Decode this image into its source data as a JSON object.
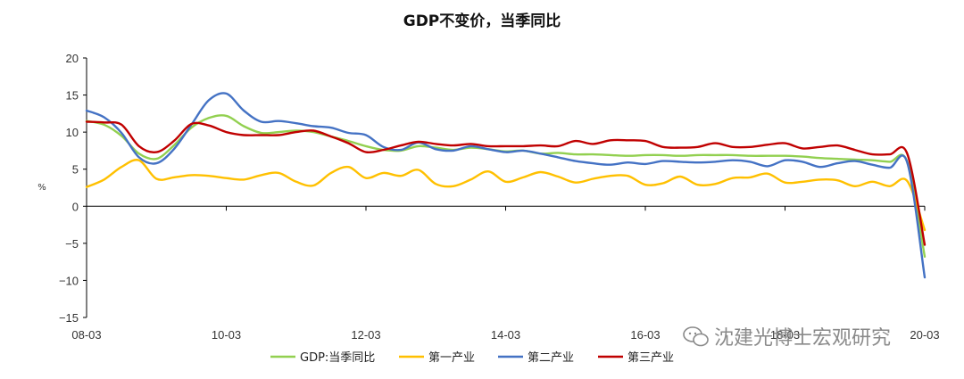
{
  "chart_data": {
    "type": "line",
    "title": "GDP不变价，当季同比",
    "xlabel": "",
    "ylabel": "%",
    "ylim": [
      -15,
      20
    ],
    "yticks": [
      -15,
      -10,
      -5,
      0,
      5,
      10,
      15,
      20
    ],
    "ytick_labels": [
      "−15",
      "−10",
      "−5",
      "0",
      "5",
      "10",
      "15",
      "20"
    ],
    "x": [
      "08-03",
      "08-06",
      "08-09",
      "08-12",
      "09-03",
      "09-06",
      "09-09",
      "09-12",
      "10-03",
      "10-06",
      "10-09",
      "10-12",
      "11-03",
      "11-06",
      "11-09",
      "11-12",
      "12-03",
      "12-06",
      "12-09",
      "12-12",
      "13-03",
      "13-06",
      "13-09",
      "13-12",
      "14-03",
      "14-06",
      "14-09",
      "14-12",
      "15-03",
      "15-06",
      "15-09",
      "15-12",
      "16-03",
      "16-06",
      "16-09",
      "16-12",
      "17-03",
      "17-06",
      "17-09",
      "17-12",
      "18-03",
      "18-06",
      "18-09",
      "18-12",
      "19-03",
      "19-06",
      "19-09",
      "19-12",
      "20-03"
    ],
    "xtick_labels": [
      "08-03",
      "10-03",
      "12-03",
      "14-03",
      "16-03",
      "18-03",
      "20-03"
    ],
    "series": [
      {
        "name": "GDP:当季同比",
        "color": "#92d050",
        "values": [
          11.5,
          11.0,
          9.5,
          7.1,
          6.4,
          8.2,
          10.6,
          11.9,
          12.2,
          10.8,
          9.9,
          10.0,
          10.2,
          10.0,
          9.4,
          8.8,
          8.1,
          7.6,
          7.5,
          8.1,
          7.9,
          7.6,
          7.9,
          7.7,
          7.4,
          7.5,
          7.1,
          7.2,
          7.0,
          7.0,
          6.9,
          6.8,
          6.9,
          6.9,
          6.8,
          6.9,
          6.9,
          6.9,
          6.8,
          6.8,
          6.8,
          6.7,
          6.5,
          6.4,
          6.3,
          6.2,
          6.0,
          6.0,
          -6.8
        ]
      },
      {
        "name": "第一产业",
        "color": "#ffc000",
        "values": [
          2.6,
          3.6,
          5.3,
          6.2,
          3.7,
          3.9,
          4.2,
          4.1,
          3.8,
          3.6,
          4.2,
          4.5,
          3.3,
          2.8,
          4.5,
          5.3,
          3.8,
          4.5,
          4.1,
          4.9,
          3.0,
          2.7,
          3.6,
          4.7,
          3.3,
          3.9,
          4.6,
          4.0,
          3.2,
          3.7,
          4.1,
          4.1,
          2.9,
          3.1,
          4.0,
          2.9,
          3.0,
          3.8,
          3.9,
          4.4,
          3.2,
          3.3,
          3.6,
          3.5,
          2.7,
          3.3,
          2.7,
          3.4,
          -3.2
        ]
      },
      {
        "name": "第二产业",
        "color": "#4472c4",
        "values": [
          12.9,
          12.0,
          9.9,
          6.6,
          5.8,
          7.7,
          11.0,
          14.3,
          15.2,
          12.9,
          11.4,
          11.5,
          11.2,
          10.8,
          10.6,
          9.9,
          9.6,
          8.0,
          7.6,
          8.6,
          7.7,
          7.5,
          8.1,
          7.7,
          7.3,
          7.5,
          7.1,
          6.6,
          6.1,
          5.8,
          5.6,
          5.9,
          5.7,
          6.1,
          6.0,
          5.9,
          6.0,
          6.2,
          6.0,
          5.4,
          6.2,
          6.0,
          5.3,
          5.8,
          6.1,
          5.6,
          5.2,
          5.9,
          -9.6
        ]
      },
      {
        "name": "第三产业",
        "color": "#c00000",
        "values": [
          11.4,
          11.3,
          11.0,
          8.1,
          7.3,
          8.8,
          11.1,
          10.9,
          10.0,
          9.6,
          9.6,
          9.6,
          10.0,
          10.2,
          9.4,
          8.5,
          7.3,
          7.6,
          8.2,
          8.7,
          8.4,
          8.2,
          8.4,
          8.1,
          8.1,
          8.1,
          8.2,
          8.1,
          8.8,
          8.4,
          8.9,
          8.9,
          8.8,
          8.0,
          7.9,
          8.0,
          8.5,
          8.0,
          8.0,
          8.3,
          8.5,
          7.8,
          8.0,
          8.2,
          7.6,
          7.0,
          7.0,
          7.1,
          -5.2
        ]
      }
    ],
    "legend": "bottom"
  },
  "watermark": "沈建光博士宏观研究"
}
